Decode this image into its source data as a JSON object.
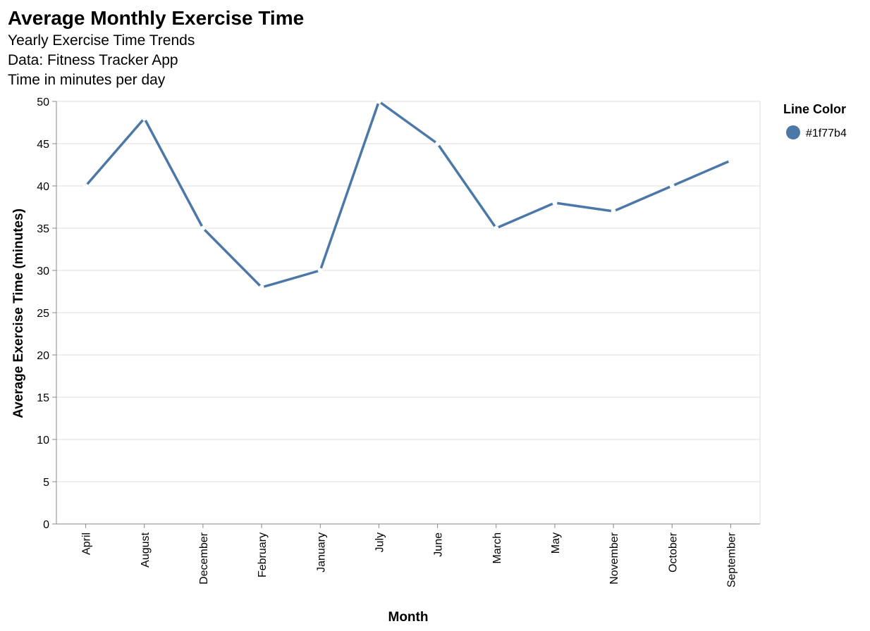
{
  "chart_data": {
    "type": "line",
    "title": "Average Monthly Exercise Time",
    "subtitles": [
      "Yearly Exercise Time Trends",
      "Data: Fitness Tracker App",
      "Time in minutes per day"
    ],
    "xlabel": "Month",
    "ylabel": "Average Exercise Time (minutes)",
    "categories": [
      "April",
      "August",
      "December",
      "February",
      "January",
      "July",
      "June",
      "March",
      "May",
      "November",
      "October",
      "September"
    ],
    "series": [
      {
        "values": [
          40,
          48,
          35,
          28,
          30,
          50,
          45,
          35,
          38,
          37,
          40,
          43
        ],
        "color": "#4c78a8"
      }
    ],
    "ylim": [
      0,
      50
    ],
    "yticks": [
      0,
      5,
      10,
      15,
      20,
      25,
      30,
      35,
      40,
      45,
      50
    ],
    "grid": true,
    "legend": {
      "title": "Line Color",
      "label": "#1f77b4",
      "color": "#4c78a8",
      "position": "right"
    }
  }
}
